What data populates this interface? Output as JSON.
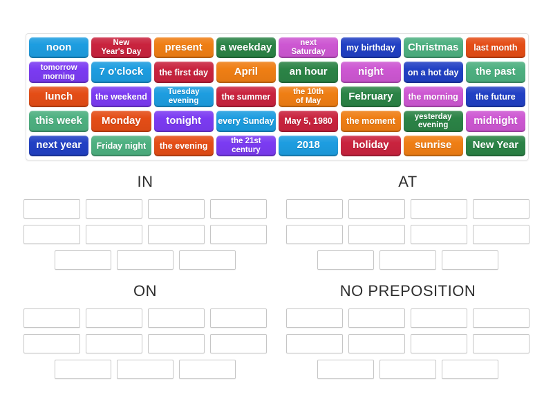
{
  "palette": {
    "blue": "#1d9de0",
    "crimson": "#c9233e",
    "orange": "#ef7e14",
    "green": "#2b8346",
    "orchid": "#cd57d2",
    "royalblue": "#2140c4",
    "seagreen": "#4db080",
    "orangered": "#e44d16",
    "violet": "#7b3bf2"
  },
  "tile_board": {
    "rows": 5,
    "cols": 8,
    "tiles": [
      {
        "label": "noon",
        "color": "blue",
        "size": "lg"
      },
      {
        "label": "New\nYear's Day",
        "color": "crimson",
        "size": "sm"
      },
      {
        "label": "present",
        "color": "orange",
        "size": "lg"
      },
      {
        "label": "a weekday",
        "color": "green",
        "size": "lg"
      },
      {
        "label": "next\nSaturday",
        "color": "orchid",
        "size": "sm"
      },
      {
        "label": "my birthday",
        "color": "royalblue",
        "size": "md"
      },
      {
        "label": "Christmas",
        "color": "seagreen",
        "size": "lg"
      },
      {
        "label": "last month",
        "color": "orangered",
        "size": "md"
      },
      {
        "label": "tomorrow\nmorning",
        "color": "violet",
        "size": "sm"
      },
      {
        "label": "7 o'clock",
        "color": "blue",
        "size": "lg"
      },
      {
        "label": "the first day",
        "color": "crimson",
        "size": "md"
      },
      {
        "label": "April",
        "color": "orange",
        "size": "lg"
      },
      {
        "label": "an hour",
        "color": "green",
        "size": "lg"
      },
      {
        "label": "night",
        "color": "orchid",
        "size": "lg"
      },
      {
        "label": "on a hot day",
        "color": "royalblue",
        "size": "md"
      },
      {
        "label": "the past",
        "color": "seagreen",
        "size": "lg"
      },
      {
        "label": "lunch",
        "color": "orangered",
        "size": "lg"
      },
      {
        "label": "the weekend",
        "color": "violet",
        "size": "md"
      },
      {
        "label": "Tuesday\nevening",
        "color": "blue",
        "size": "sm"
      },
      {
        "label": "the summer",
        "color": "crimson",
        "size": "md"
      },
      {
        "label": "the 10th\nof May",
        "color": "orange",
        "size": "sm"
      },
      {
        "label": "February",
        "color": "green",
        "size": "lg"
      },
      {
        "label": "the morning",
        "color": "orchid",
        "size": "md"
      },
      {
        "label": "the future",
        "color": "royalblue",
        "size": "md"
      },
      {
        "label": "this week",
        "color": "seagreen",
        "size": "lg"
      },
      {
        "label": "Monday",
        "color": "orangered",
        "size": "lg"
      },
      {
        "label": "tonight",
        "color": "violet",
        "size": "lg"
      },
      {
        "label": "every Sunday",
        "color": "blue",
        "size": "md"
      },
      {
        "label": "May 5, 1980",
        "color": "crimson",
        "size": "md"
      },
      {
        "label": "the moment",
        "color": "orange",
        "size": "md"
      },
      {
        "label": "yesterday\nevening",
        "color": "green",
        "size": "sm"
      },
      {
        "label": "midnight",
        "color": "orchid",
        "size": "lg"
      },
      {
        "label": "next year",
        "color": "royalblue",
        "size": "lg"
      },
      {
        "label": "Friday night",
        "color": "seagreen",
        "size": "md"
      },
      {
        "label": "the evening",
        "color": "orangered",
        "size": "md"
      },
      {
        "label": "the 21st\ncentury",
        "color": "violet",
        "size": "sm"
      },
      {
        "label": "2018",
        "color": "blue",
        "size": "lg"
      },
      {
        "label": "holiday",
        "color": "crimson",
        "size": "lg"
      },
      {
        "label": "sunrise",
        "color": "orange",
        "size": "lg"
      },
      {
        "label": "New Year",
        "color": "green",
        "size": "lg"
      }
    ]
  },
  "groups": [
    {
      "title": "IN",
      "slot_rows": [
        4,
        4,
        3
      ]
    },
    {
      "title": "AT",
      "slot_rows": [
        4,
        4,
        3
      ]
    },
    {
      "title": "ON",
      "slot_rows": [
        4,
        4,
        3
      ]
    },
    {
      "title": "NO PREPOSITION",
      "slot_rows": [
        4,
        4,
        3
      ]
    }
  ]
}
